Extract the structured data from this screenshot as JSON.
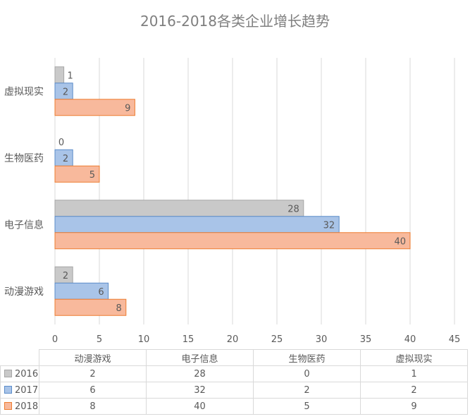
{
  "chart_data": {
    "type": "bar",
    "orientation": "horizontal",
    "title": "2016-2018各类企业增长趋势",
    "categories": [
      "动漫游戏",
      "电子信息",
      "生物医药",
      "虚拟现实"
    ],
    "series": [
      {
        "name": "2016",
        "values": [
          2,
          28,
          0,
          1
        ],
        "color": "#c9c9c9",
        "border": "#a6a6a6"
      },
      {
        "name": "2017",
        "values": [
          6,
          32,
          2,
          2
        ],
        "color": "#a9c4e8",
        "border": "#5b8cc9"
      },
      {
        "name": "2018",
        "values": [
          8,
          40,
          5,
          9
        ],
        "color": "#f8b99c",
        "border": "#ed7d31"
      }
    ],
    "xlim": [
      0,
      45
    ],
    "xticks": [
      "0",
      "5",
      "10",
      "15",
      "20",
      "25",
      "30",
      "35",
      "40",
      "45"
    ],
    "grid": true,
    "data_table": true
  }
}
